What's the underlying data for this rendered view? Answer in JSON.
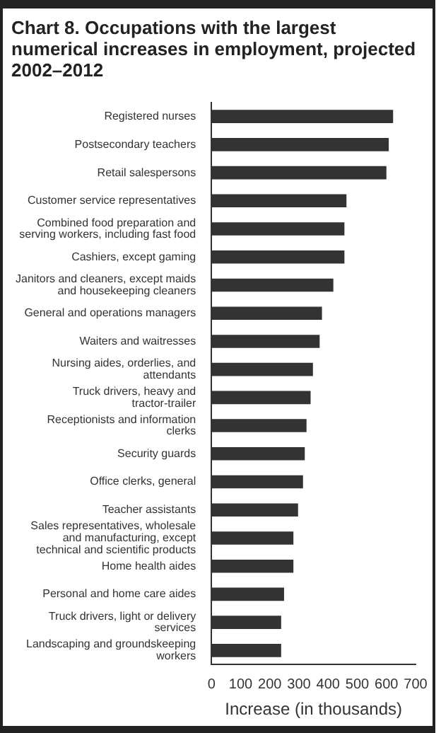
{
  "chart_data": {
    "type": "bar",
    "orientation": "horizontal",
    "title": "Chart 8. Occupations with the largest numerical increases in employment, projected 2002–2012",
    "xlabel": "Increase (in thousands)",
    "categories": [
      "Registered nurses",
      "Postsecondary teachers",
      "Retail salespersons",
      "Customer service representatives",
      "Combined food preparation and serving workers, including fast food",
      "Cashiers, except gaming",
      "Janitors and cleaners, except maids and housekeeping cleaners",
      "General and operations managers",
      "Waiters and waitresses",
      "Nursing aides, orderlies, and attendants",
      "Truck drivers, heavy and tractor-trailer",
      "Receptionists and information clerks",
      "Security guards",
      "Office clerks, general",
      "Teacher assistants",
      "Sales representatives, wholesale and manufacturing, except technical and scientific products",
      "Home health aides",
      "Personal and home care aides",
      "Truck drivers, light or delivery services",
      "Landscaping and groundskeeping workers"
    ],
    "values": [
      623,
      608,
      600,
      463,
      456,
      456,
      418,
      379,
      371,
      348,
      340,
      326,
      320,
      314,
      297,
      281,
      281,
      249,
      239,
      239
    ],
    "color": "#333333",
    "xlim": [
      0,
      700
    ],
    "xticks": [
      0,
      100,
      200,
      300,
      400,
      500,
      600,
      700
    ],
    "grid": false,
    "legend": false
  }
}
